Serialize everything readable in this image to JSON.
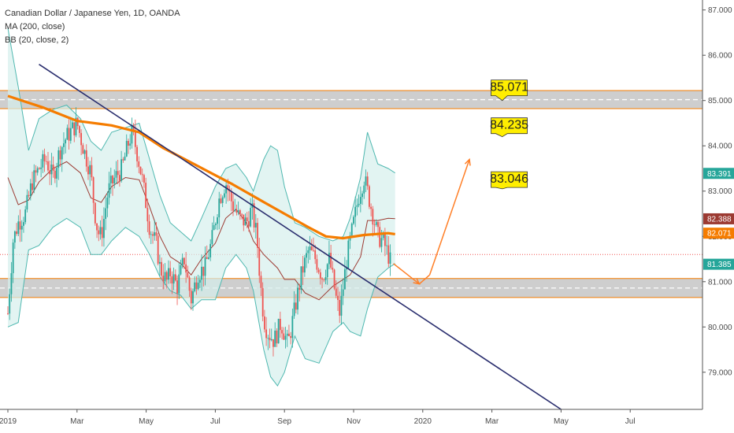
{
  "legend": {
    "title": "Canadian Dollar / Japanese Yen, 1D, OANDA",
    "ma": "MA (200, close)",
    "bb": "BB (20, close, 2)"
  },
  "colors": {
    "candle_up": "#26a69a",
    "candle_down": "#ef5350",
    "ma": "#f57c00",
    "bb_line": "#4fb8b0",
    "bb_fill": "#d6efed",
    "bb_basis": "#9c3a32",
    "trendline": "#2a2e6e",
    "zone_fill": "#bdbdbd",
    "zone_edge": "#f57c00",
    "callout": "#ffee00",
    "projection": "#ff7f27"
  },
  "chart_data": {
    "type": "candlestick",
    "title": "Canadian Dollar / Japanese Yen, 1D, OANDA",
    "ylim": [
      78.18,
      87.22
    ],
    "y_ticks": [
      "87.000",
      "86.000",
      "85.000",
      "84.000",
      "83.000",
      "82.000",
      "81.000",
      "80.000",
      "79.000"
    ],
    "x_labels": [
      "2019",
      "Mar",
      "May",
      "Jul",
      "Sep",
      "Nov",
      "2020",
      "Mar",
      "May",
      "Jul"
    ],
    "x_label_positions": [
      0,
      2,
      4,
      6,
      8,
      10,
      12,
      14,
      16,
      18
    ],
    "close_path": [
      [
        0.0,
        80.3
      ],
      [
        0.15,
        81.9
      ],
      [
        0.3,
        82.3
      ],
      [
        0.5,
        82.5
      ],
      [
        0.7,
        83.2
      ],
      [
        0.9,
        83.5
      ],
      [
        1.1,
        83.7
      ],
      [
        1.3,
        83.3
      ],
      [
        1.5,
        83.9
      ],
      [
        1.7,
        84.2
      ],
      [
        1.9,
        84.4
      ],
      [
        2.0,
        84.5
      ],
      [
        2.2,
        83.9
      ],
      [
        2.4,
        83.4
      ],
      [
        2.5,
        82.6
      ],
      [
        2.6,
        82.1
      ],
      [
        2.7,
        82.0
      ],
      [
        2.9,
        83.0
      ],
      [
        3.1,
        83.3
      ],
      [
        3.3,
        83.5
      ],
      [
        3.5,
        84.1
      ],
      [
        3.6,
        84.3
      ],
      [
        3.75,
        83.8
      ],
      [
        3.9,
        83.2
      ],
      [
        4.0,
        82.7
      ],
      [
        4.1,
        82.2
      ],
      [
        4.3,
        81.8
      ],
      [
        4.4,
        81.3
      ],
      [
        4.6,
        81.0
      ],
      [
        4.7,
        81.2
      ],
      [
        4.9,
        80.9
      ],
      [
        5.1,
        81.5
      ],
      [
        5.3,
        80.6
      ],
      [
        5.5,
        81.2
      ],
      [
        5.7,
        81.3
      ],
      [
        5.9,
        81.9
      ],
      [
        6.1,
        82.8
      ],
      [
        6.3,
        83.2
      ],
      [
        6.5,
        82.7
      ],
      [
        6.7,
        82.4
      ],
      [
        6.9,
        82.3
      ],
      [
        7.05,
        82.6
      ],
      [
        7.2,
        82.0
      ],
      [
        7.3,
        81.0
      ],
      [
        7.4,
        80.2
      ],
      [
        7.5,
        79.9
      ],
      [
        7.7,
        79.7
      ],
      [
        7.9,
        80.1
      ],
      [
        8.1,
        79.6
      ],
      [
        8.2,
        80.0
      ],
      [
        8.3,
        80.4
      ],
      [
        8.5,
        81.2
      ],
      [
        8.7,
        81.7
      ],
      [
        8.9,
        81.5
      ],
      [
        9.1,
        81.1
      ],
      [
        9.3,
        81.5
      ],
      [
        9.5,
        80.6
      ],
      [
        9.6,
        80.3
      ],
      [
        9.7,
        80.9
      ],
      [
        9.8,
        81.5
      ],
      [
        10.0,
        82.3
      ],
      [
        10.15,
        82.9
      ],
      [
        10.3,
        83.3
      ],
      [
        10.4,
        83.0
      ],
      [
        10.55,
        82.5
      ],
      [
        10.7,
        82.0
      ],
      [
        10.85,
        81.9
      ],
      [
        11.0,
        81.6
      ],
      [
        11.1,
        81.35
      ]
    ],
    "ma200": [
      [
        0.0,
        85.1
      ],
      [
        1.0,
        84.85
      ],
      [
        2.0,
        84.55
      ],
      [
        3.0,
        84.45
      ],
      [
        3.8,
        84.3
      ],
      [
        4.5,
        83.95
      ],
      [
        5.5,
        83.55
      ],
      [
        6.5,
        83.15
      ],
      [
        7.3,
        82.8
      ],
      [
        8.0,
        82.5
      ],
      [
        8.7,
        82.2
      ],
      [
        9.2,
        82.0
      ],
      [
        9.7,
        81.96
      ],
      [
        10.3,
        82.03
      ],
      [
        11.0,
        82.07
      ],
      [
        11.2,
        82.05
      ]
    ],
    "bb_upper": [
      [
        0.0,
        86.6
      ],
      [
        0.3,
        85.3
      ],
      [
        0.6,
        83.9
      ],
      [
        0.9,
        84.6
      ],
      [
        1.3,
        84.8
      ],
      [
        1.7,
        84.9
      ],
      [
        2.1,
        84.6
      ],
      [
        2.4,
        84.1
      ],
      [
        2.7,
        83.9
      ],
      [
        3.0,
        84.3
      ],
      [
        3.4,
        84.4
      ],
      [
        3.8,
        84.5
      ],
      [
        4.1,
        83.7
      ],
      [
        4.4,
        82.9
      ],
      [
        4.7,
        82.3
      ],
      [
        5.0,
        82.1
      ],
      [
        5.3,
        81.9
      ],
      [
        5.6,
        82.4
      ],
      [
        6.0,
        83.1
      ],
      [
        6.3,
        83.5
      ],
      [
        6.6,
        83.6
      ],
      [
        6.9,
        83.3
      ],
      [
        7.1,
        83.0
      ],
      [
        7.4,
        83.7
      ],
      [
        7.6,
        84.0
      ],
      [
        7.8,
        83.9
      ],
      [
        8.0,
        83.1
      ],
      [
        8.3,
        82.3
      ],
      [
        8.6,
        82.2
      ],
      [
        9.0,
        82.0
      ],
      [
        9.4,
        81.9
      ],
      [
        9.7,
        82.0
      ],
      [
        9.9,
        82.4
      ],
      [
        10.2,
        83.3
      ],
      [
        10.4,
        84.3
      ],
      [
        10.7,
        83.6
      ],
      [
        11.0,
        83.5
      ],
      [
        11.2,
        83.4
      ]
    ],
    "bb_lower": [
      [
        0.0,
        80.0
      ],
      [
        0.3,
        80.1
      ],
      [
        0.6,
        81.7
      ],
      [
        0.9,
        81.8
      ],
      [
        1.3,
        82.2
      ],
      [
        1.7,
        82.4
      ],
      [
        2.1,
        82.2
      ],
      [
        2.4,
        81.6
      ],
      [
        2.7,
        81.6
      ],
      [
        3.0,
        81.9
      ],
      [
        3.4,
        82.2
      ],
      [
        3.8,
        82.0
      ],
      [
        4.1,
        81.6
      ],
      [
        4.4,
        81.1
      ],
      [
        4.7,
        80.8
      ],
      [
        5.0,
        80.7
      ],
      [
        5.3,
        80.4
      ],
      [
        5.6,
        80.6
      ],
      [
        6.0,
        80.6
      ],
      [
        6.3,
        81.3
      ],
      [
        6.6,
        81.6
      ],
      [
        6.9,
        81.3
      ],
      [
        7.1,
        80.8
      ],
      [
        7.4,
        79.5
      ],
      [
        7.6,
        78.9
      ],
      [
        7.8,
        78.7
      ],
      [
        8.0,
        79.0
      ],
      [
        8.3,
        79.8
      ],
      [
        8.6,
        79.3
      ],
      [
        9.0,
        79.2
      ],
      [
        9.4,
        79.9
      ],
      [
        9.7,
        80.1
      ],
      [
        9.9,
        79.9
      ],
      [
        10.2,
        79.8
      ],
      [
        10.4,
        80.4
      ],
      [
        10.7,
        81.1
      ],
      [
        11.0,
        81.3
      ],
      [
        11.2,
        81.4
      ]
    ],
    "bb_basis": [
      [
        0.0,
        83.3
      ],
      [
        0.3,
        82.7
      ],
      [
        0.6,
        82.8
      ],
      [
        0.9,
        83.2
      ],
      [
        1.3,
        83.5
      ],
      [
        1.7,
        83.65
      ],
      [
        2.1,
        83.4
      ],
      [
        2.4,
        82.85
      ],
      [
        2.7,
        82.75
      ],
      [
        3.0,
        83.1
      ],
      [
        3.4,
        83.3
      ],
      [
        3.8,
        83.25
      ],
      [
        4.1,
        82.65
      ],
      [
        4.4,
        82.0
      ],
      [
        4.7,
        81.55
      ],
      [
        5.0,
        81.4
      ],
      [
        5.3,
        81.15
      ],
      [
        5.6,
        81.5
      ],
      [
        6.0,
        81.85
      ],
      [
        6.3,
        82.4
      ],
      [
        6.6,
        82.6
      ],
      [
        6.9,
        82.3
      ],
      [
        7.1,
        81.9
      ],
      [
        7.4,
        81.6
      ],
      [
        7.6,
        81.45
      ],
      [
        7.8,
        81.3
      ],
      [
        8.0,
        81.05
      ],
      [
        8.3,
        81.05
      ],
      [
        8.6,
        80.75
      ],
      [
        9.0,
        80.6
      ],
      [
        9.4,
        80.9
      ],
      [
        9.7,
        81.05
      ],
      [
        9.9,
        81.15
      ],
      [
        10.2,
        81.55
      ],
      [
        10.4,
        82.35
      ],
      [
        10.7,
        82.35
      ],
      [
        11.0,
        82.4
      ],
      [
        11.2,
        82.39
      ]
    ],
    "zones": [
      {
        "top": 85.22,
        "bottom": 84.82,
        "line": 85.02
      },
      {
        "top": 81.07,
        "bottom": 80.65,
        "line": 80.86
      }
    ],
    "trendline": [
      [
        0.9,
        85.8
      ],
      [
        16.0,
        78.18
      ]
    ],
    "projection_down": [
      [
        11.15,
        81.4
      ],
      [
        11.9,
        80.95
      ]
    ],
    "projection_up": [
      [
        12.2,
        81.15
      ],
      [
        13.35,
        83.7
      ]
    ],
    "price_tags": [
      {
        "label": "83.391",
        "value": 83.391,
        "color": "#26a69a"
      },
      {
        "label": "82.388",
        "value": 82.388,
        "color": "#9c3a32"
      },
      {
        "label": "82.071",
        "value": 82.071,
        "color": "#f57c00"
      },
      {
        "label": "81.385",
        "value": 81.385,
        "color": "#26a69a"
      }
    ],
    "current_price_line": 81.6,
    "callouts": [
      {
        "label": "85.071",
        "value": 85.071,
        "x": 14.5,
        "anchor_x": 14.3,
        "anchor_y": 85.0
      },
      {
        "label": "84.235",
        "value": 84.235,
        "x": 14.5,
        "anchor_x": 14.3,
        "anchor_y": 84.2
      },
      {
        "label": "83.046",
        "value": 83.046,
        "x": 14.5,
        "anchor_x": 14.3,
        "anchor_y": 83.05
      }
    ]
  }
}
